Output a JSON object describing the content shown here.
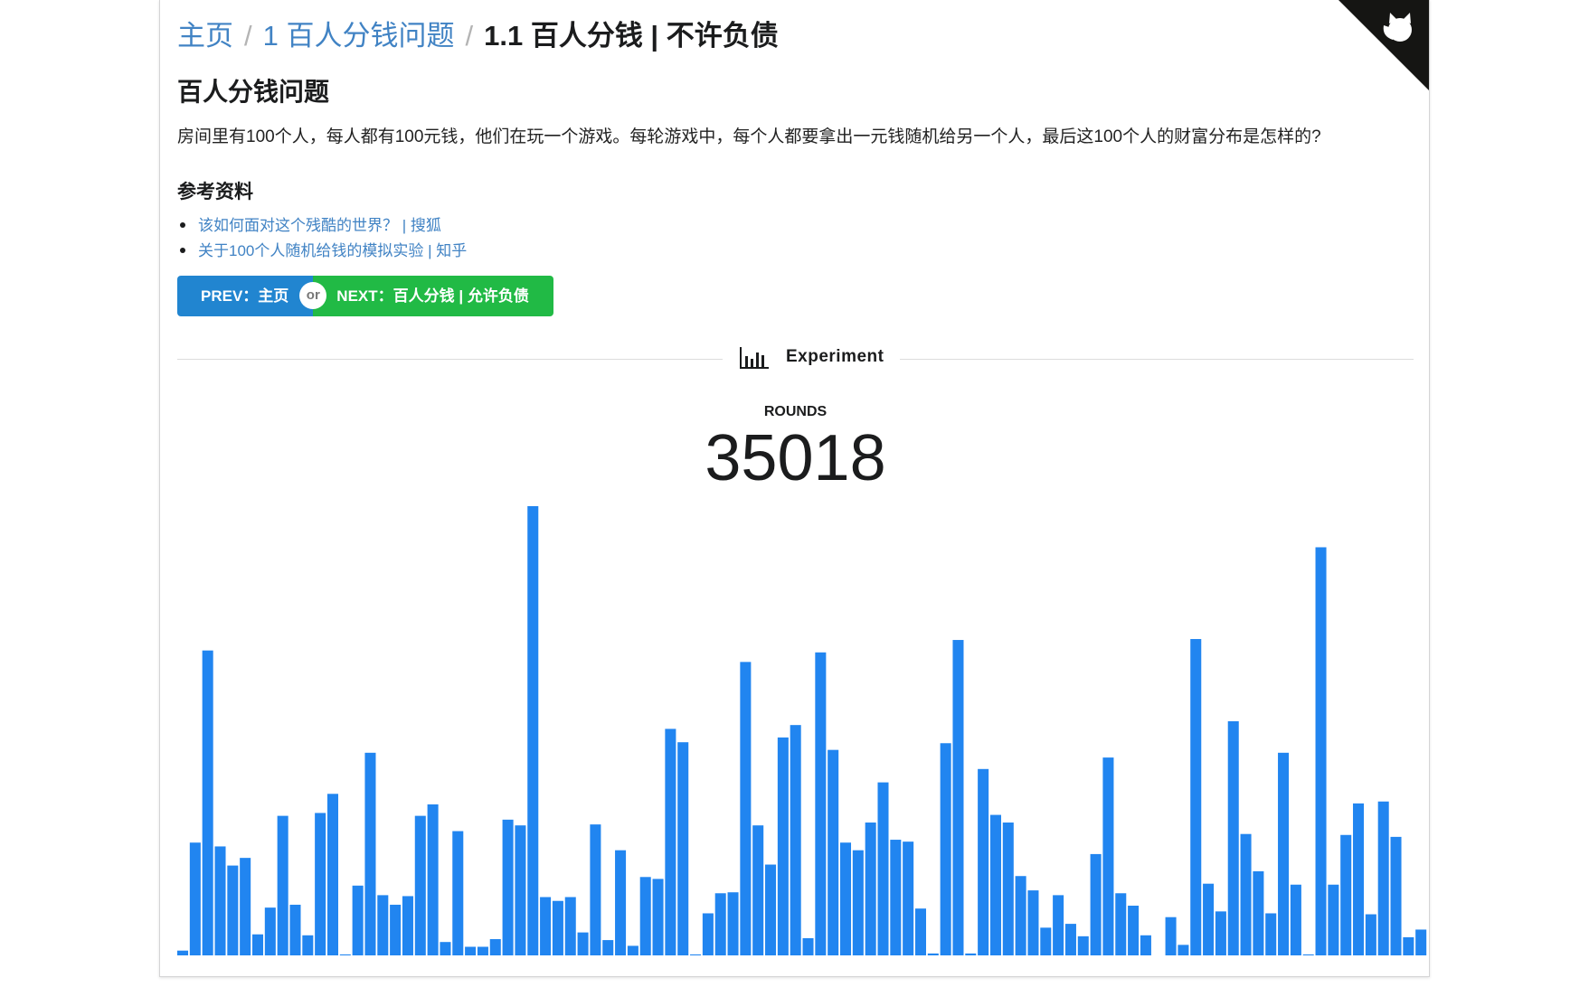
{
  "breadcrumb": {
    "home": "主页",
    "section": "1 百人分钱问题",
    "current": "1.1 百人分钱 | 不许负债",
    "separator": "/"
  },
  "title": "百人分钱问题",
  "description": "房间里有100个人，每人都有100元钱，他们在玩一个游戏。每轮游戏中，每个人都要拿出一元钱随机给另一个人，最后这100个人的财富分布是怎样的?",
  "references": {
    "heading": "参考资料",
    "items": [
      "该如何面对这个残酷的世界？ | 搜狐",
      "关于100个人随机给钱的模拟实验 | 知乎"
    ]
  },
  "nav": {
    "prev_label": "PREV：主页",
    "or_label": "or",
    "next_label": "NEXT：百人分钱 | 允许负债"
  },
  "experiment": {
    "label": "Experiment",
    "icon": "bar-chart-icon"
  },
  "rounds": {
    "label": "ROUNDS",
    "value": "35018"
  },
  "colors": {
    "bar": "#2185f0",
    "prev": "#2185d0",
    "next": "#21ba45",
    "link": "#4183c4"
  },
  "chart_data": {
    "type": "bar",
    "title": "",
    "xlabel": "",
    "ylabel": "",
    "ylim": [
      0,
      470
    ],
    "grid": false,
    "categories": [
      1,
      2,
      3,
      4,
      5,
      6,
      7,
      8,
      9,
      10,
      11,
      12,
      13,
      14,
      15,
      16,
      17,
      18,
      19,
      20,
      21,
      22,
      23,
      24,
      25,
      26,
      27,
      28,
      29,
      30,
      31,
      32,
      33,
      34,
      35,
      36,
      37,
      38,
      39,
      40,
      41,
      42,
      43,
      44,
      45,
      46,
      47,
      48,
      49,
      50,
      51,
      52,
      53,
      54,
      55,
      56,
      57,
      58,
      59,
      60,
      61,
      62,
      63,
      64,
      65,
      66,
      67,
      68,
      69,
      70,
      71,
      72,
      73,
      74,
      75,
      76,
      77,
      78,
      79,
      80,
      81,
      82,
      83,
      84,
      85,
      86,
      87,
      88,
      89,
      90,
      91,
      92,
      93,
      94,
      95,
      96,
      97,
      98,
      99,
      100
    ],
    "values": [
      5,
      118,
      319,
      114,
      94,
      102,
      22,
      50,
      146,
      53,
      21,
      149,
      169,
      1,
      73,
      212,
      63,
      53,
      62,
      146,
      158,
      14,
      130,
      9,
      9,
      17,
      142,
      136,
      470,
      61,
      57,
      61,
      24,
      137,
      16,
      110,
      10,
      82,
      80,
      237,
      223,
      1,
      44,
      65,
      66,
      307,
      136,
      95,
      228,
      241,
      18,
      317,
      215,
      118,
      110,
      139,
      181,
      121,
      119,
      49,
      2,
      222,
      330,
      2,
      195,
      147,
      139,
      83,
      68,
      29,
      63,
      33,
      20,
      106,
      207,
      65,
      52,
      21,
      0,
      40,
      11,
      331,
      75,
      46,
      245,
      127,
      88,
      44,
      212,
      74,
      1,
      427,
      74,
      126,
      159,
      43,
      161,
      124,
      19,
      27
    ]
  }
}
